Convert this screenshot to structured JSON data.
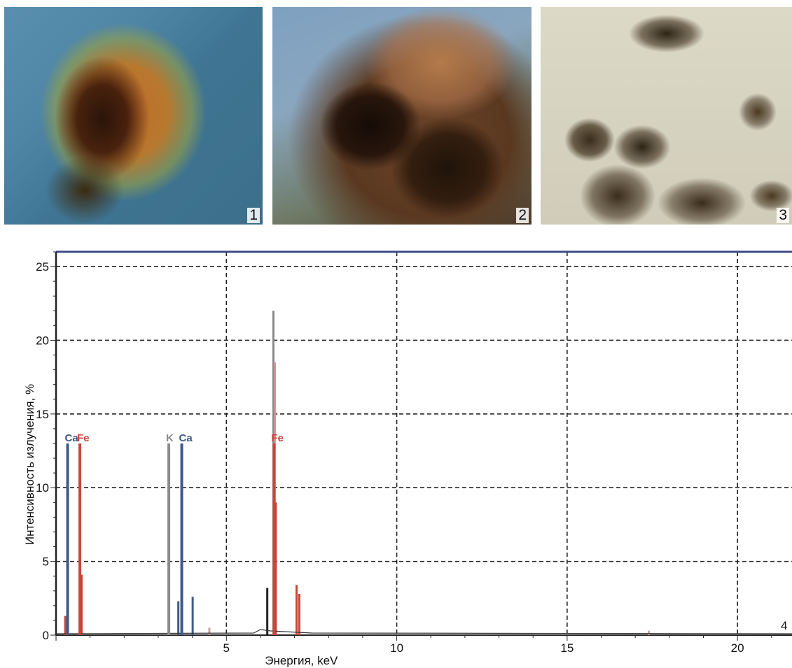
{
  "panels": [
    {
      "label": "1"
    },
    {
      "label": "2"
    },
    {
      "label": "3"
    }
  ],
  "chart_panel_label": "4",
  "chart_data": {
    "type": "bar",
    "xlabel": "Энергия, keV",
    "ylabel": "Интенсивность излучения, %",
    "xlim": [
      0,
      21.6
    ],
    "ylim": [
      0,
      26
    ],
    "x_ticks": [
      5,
      10,
      15,
      20
    ],
    "y_ticks": [
      0,
      5,
      10,
      15,
      20,
      25
    ],
    "grid": true,
    "element_markers": [
      {
        "element": "Ca",
        "label": "Ca",
        "energy": 0.34,
        "intensity": 13,
        "color": "#3e5a8a"
      },
      {
        "element": "Fe",
        "label": "Fe",
        "energy": 0.7,
        "intensity": 13,
        "color": "#c8453a"
      },
      {
        "element": "K",
        "label": "K",
        "energy": 3.31,
        "intensity": 13,
        "color": "#8a8a8a"
      },
      {
        "element": "Ca",
        "label": "Ca",
        "energy": 3.69,
        "intensity": 13,
        "color": "#3e5a8a"
      },
      {
        "element": "Fe",
        "label": "Fe",
        "energy": 6.4,
        "intensity": 13,
        "color": "#c8453a"
      }
    ],
    "spectrum_peaks": [
      {
        "energy": 0.27,
        "intensity": 1.3,
        "color": "#c8453a"
      },
      {
        "energy": 0.75,
        "intensity": 4.1,
        "color": "#c8453a"
      },
      {
        "energy": 3.59,
        "intensity": 2.3,
        "color": "#3e5a8a"
      },
      {
        "energy": 4.01,
        "intensity": 2.6,
        "color": "#3e5a8a"
      },
      {
        "energy": 4.5,
        "intensity": 0.5,
        "color": "#c9a0a0"
      },
      {
        "energy": 6.2,
        "intensity": 3.2,
        "color": "#222222"
      },
      {
        "energy": 6.38,
        "intensity": 22.0,
        "color": "#8a8a8a"
      },
      {
        "energy": 6.42,
        "intensity": 18.5,
        "color": "#c99090"
      },
      {
        "energy": 6.45,
        "intensity": 9.0,
        "color": "#c8453a"
      },
      {
        "energy": 7.06,
        "intensity": 3.4,
        "color": "#c8453a"
      },
      {
        "energy": 7.14,
        "intensity": 2.8,
        "color": "#c8453a"
      },
      {
        "energy": 17.4,
        "intensity": 0.3,
        "color": "#c9a0a0"
      }
    ]
  }
}
